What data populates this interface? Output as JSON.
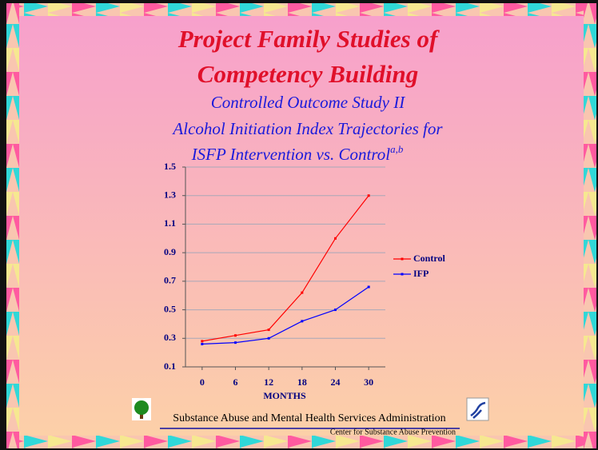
{
  "chart_data": {
    "type": "line",
    "title_lines": [
      "Project Family Studies of",
      "Competency Building"
    ],
    "subtitle_lines": [
      "Controlled Outcome Study II",
      "Alcohol Initiation Index Trajectories for",
      "ISFP Intervention vs. Control"
    ],
    "subtitle_superscript": "a,b",
    "x_label": "MONTHS",
    "x": [
      0,
      6,
      12,
      18,
      24,
      30
    ],
    "xlim": [
      -3,
      33
    ],
    "xticks": [
      0,
      6,
      12,
      18,
      24,
      30
    ],
    "ylim": [
      0.1,
      1.5
    ],
    "yticks": [
      0.1,
      0.3,
      0.5,
      0.7,
      0.9,
      1.1,
      1.3,
      1.5
    ],
    "grid": true,
    "legend": "right",
    "series": [
      {
        "name": "Control",
        "color": "#ff0000",
        "values": [
          0.28,
          0.32,
          0.36,
          0.62,
          1.0,
          1.3
        ]
      },
      {
        "name": "IFP",
        "color": "#0000ff",
        "values": [
          0.26,
          0.27,
          0.3,
          0.42,
          0.5,
          0.66
        ]
      }
    ]
  },
  "footer": {
    "agency": "Substance Abuse and Mental Health Services Administration",
    "center": "Center for Substance Abuse Prevention"
  }
}
